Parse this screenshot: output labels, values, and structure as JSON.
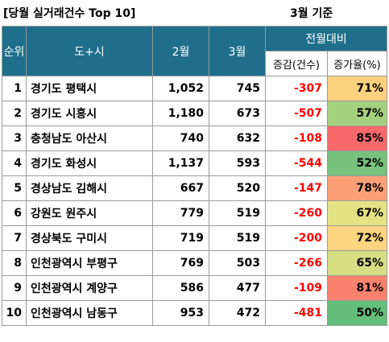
{
  "title": "[당월 실거래건수 Top 10]",
  "basis": "3월 기준",
  "headers": {
    "rank": "순위",
    "region": "도+시",
    "feb": "2월",
    "mar": "3월",
    "compare": "전월대비",
    "diff": "증감(건수)",
    "rate": "증가율(%)"
  },
  "rows": [
    {
      "rank": "1",
      "region": "경기도 평택시",
      "feb": "1,052",
      "mar": "745",
      "diff": "-307",
      "rate": "71%",
      "rate_color": "#fdd17e"
    },
    {
      "rank": "2",
      "region": "경기도 시흥시",
      "feb": "1,180",
      "mar": "673",
      "diff": "-507",
      "rate": "57%",
      "rate_color": "#a5d17e"
    },
    {
      "rank": "3",
      "region": "충청남도 아산시",
      "feb": "740",
      "mar": "632",
      "diff": "-108",
      "rate": "85%",
      "rate_color": "#f8696b"
    },
    {
      "rank": "4",
      "region": "경기도 화성시",
      "feb": "1,137",
      "mar": "593",
      "diff": "-544",
      "rate": "52%",
      "rate_color": "#76c17c"
    },
    {
      "rank": "5",
      "region": "경상남도 김해시",
      "feb": "667",
      "mar": "520",
      "diff": "-147",
      "rate": "78%",
      "rate_color": "#fba076"
    },
    {
      "rank": "6",
      "region": "강원도 원주시",
      "feb": "779",
      "mar": "519",
      "diff": "-260",
      "rate": "67%",
      "rate_color": "#e4e383"
    },
    {
      "rank": "7",
      "region": "경상북도 구미시",
      "feb": "719",
      "mar": "519",
      "diff": "-200",
      "rate": "72%",
      "rate_color": "#fdd480"
    },
    {
      "rank": "8",
      "region": "인천광역시 부평구",
      "feb": "769",
      "mar": "503",
      "diff": "-266",
      "rate": "65%",
      "rate_color": "#d5de81"
    },
    {
      "rank": "9",
      "region": "인천광역시 계양구",
      "feb": "586",
      "mar": "477",
      "diff": "-109",
      "rate": "81%",
      "rate_color": "#f9826f"
    },
    {
      "rank": "10",
      "region": "인천광역시 남동구",
      "feb": "953",
      "mar": "472",
      "diff": "-481",
      "rate": "50%",
      "rate_color": "#63be7b"
    }
  ]
}
